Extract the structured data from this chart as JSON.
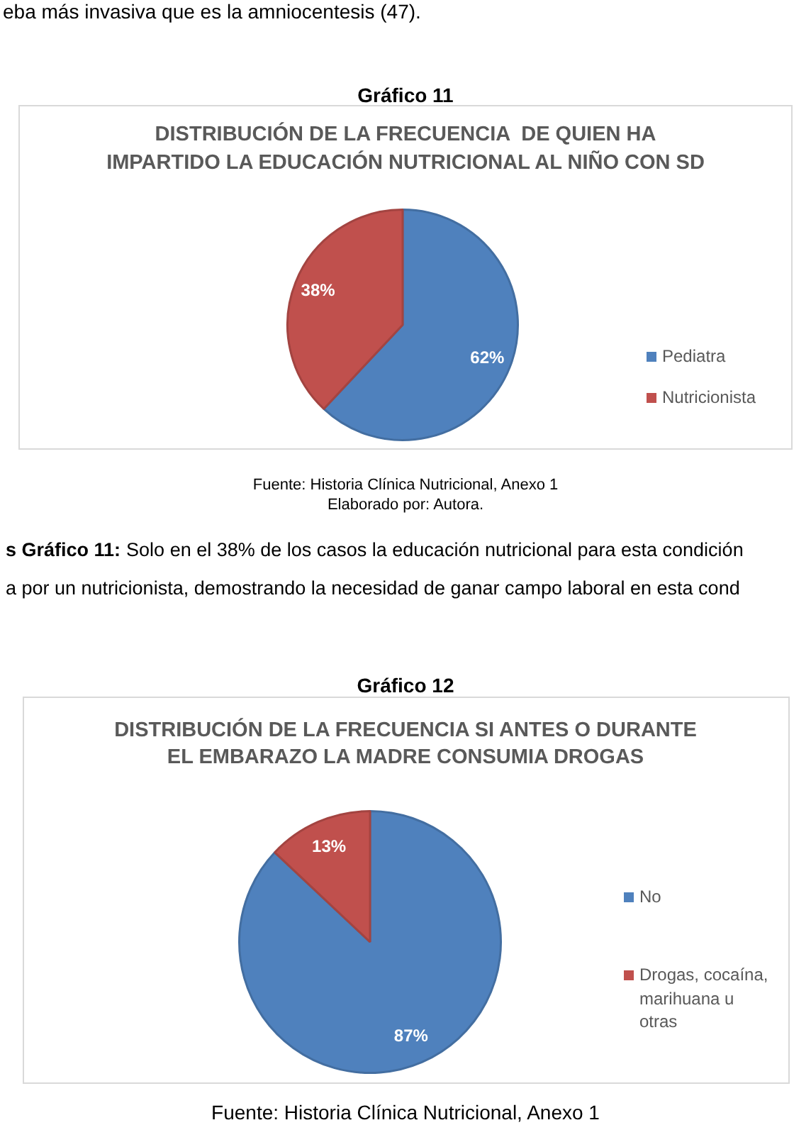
{
  "chart_data": [
    {
      "type": "pie",
      "title": "DISTRIBUCIÓN DE LA FRECUENCIA  DE QUIEN HA IMPARTIDO LA EDUCACIÓN NUTRICIONAL AL NIÑO CON SD",
      "categories": [
        "Pediatra",
        "Nutricionista"
      ],
      "values": [
        62,
        38
      ],
      "colors": [
        "#4f81bd",
        "#c0504d"
      ],
      "value_labels": [
        "62%",
        "38%"
      ],
      "legend": "right",
      "annotations": [
        "eba más invasiva que es la amniocentesis (47).",
        "Gráfico 11",
        "Fuente: Historia Clínica Nutricional, Anexo 1",
        "Elaborado por: Autora.",
        "s Gráfico 11:",
        "Solo en el 38% de los casos la educación nutricional para esta condición",
        "a por un nutricionista, demostrando la necesidad de ganar campo laboral en esta cond"
      ]
    },
    {
      "type": "pie",
      "title": "DISTRIBUCIÓN DE LA FRECUENCIA SI ANTES O DURANTE EL EMBARAZO LA MADRE CONSUMIA DROGAS",
      "categories": [
        "No",
        "Drogas, cocaína, marihuana u otras"
      ],
      "values": [
        87,
        13
      ],
      "colors": [
        "#4f81bd",
        "#c0504d"
      ],
      "value_labels": [
        "87%",
        "13%"
      ],
      "legend": "right",
      "annotations": [
        "Gráfico 12",
        "Fuente: Historia Clínica Nutricional, Anexo 1"
      ]
    }
  ]
}
